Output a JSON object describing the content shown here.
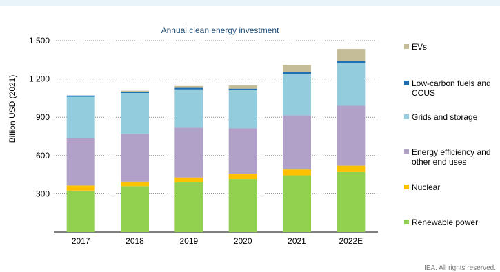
{
  "chart_data": {
    "type": "bar",
    "stacked": true,
    "title": "Annual clean energy investment",
    "xlabel": "",
    "ylabel": "Billion USD (2021)",
    "ylim": [
      0,
      1500
    ],
    "yticks": [
      300,
      600,
      900,
      1200,
      1500
    ],
    "ytick_labels": [
      "300",
      "600",
      "900",
      "1 200",
      "1 500"
    ],
    "grid": "horizontal dotted",
    "legend_position": "right",
    "categories": [
      "2017",
      "2018",
      "2019",
      "2020",
      "2021",
      "2022E"
    ],
    "series": [
      {
        "name": "Renewable power",
        "color": "#92d050",
        "values": [
          325,
          360,
          390,
          415,
          445,
          470
        ]
      },
      {
        "name": "Nuclear",
        "color": "#ffc000",
        "values": [
          40,
          35,
          38,
          42,
          45,
          50
        ]
      },
      {
        "name": "Energy efficiency and other end uses",
        "color": "#b1a0c7",
        "values": [
          370,
          375,
          390,
          355,
          425,
          470
        ]
      },
      {
        "name": "Grids and storage",
        "color": "#93cddd",
        "values": [
          325,
          320,
          300,
          300,
          325,
          335
        ]
      },
      {
        "name": "Low-carbon fuels and CCUS",
        "color": "#1f6fb5",
        "values": [
          10,
          10,
          12,
          12,
          15,
          17
        ]
      },
      {
        "name": "EVs",
        "color": "#c4bd97",
        "values": [
          0,
          8,
          15,
          25,
          55,
          93
        ]
      }
    ]
  },
  "legend_order": [
    "EVs",
    "Low-carbon fuels and CCUS",
    "Grids and storage",
    "Energy efficiency and other end uses",
    "Nuclear",
    "Renewable power"
  ],
  "footer": {
    "credit": "IEA. All rights reserved."
  }
}
